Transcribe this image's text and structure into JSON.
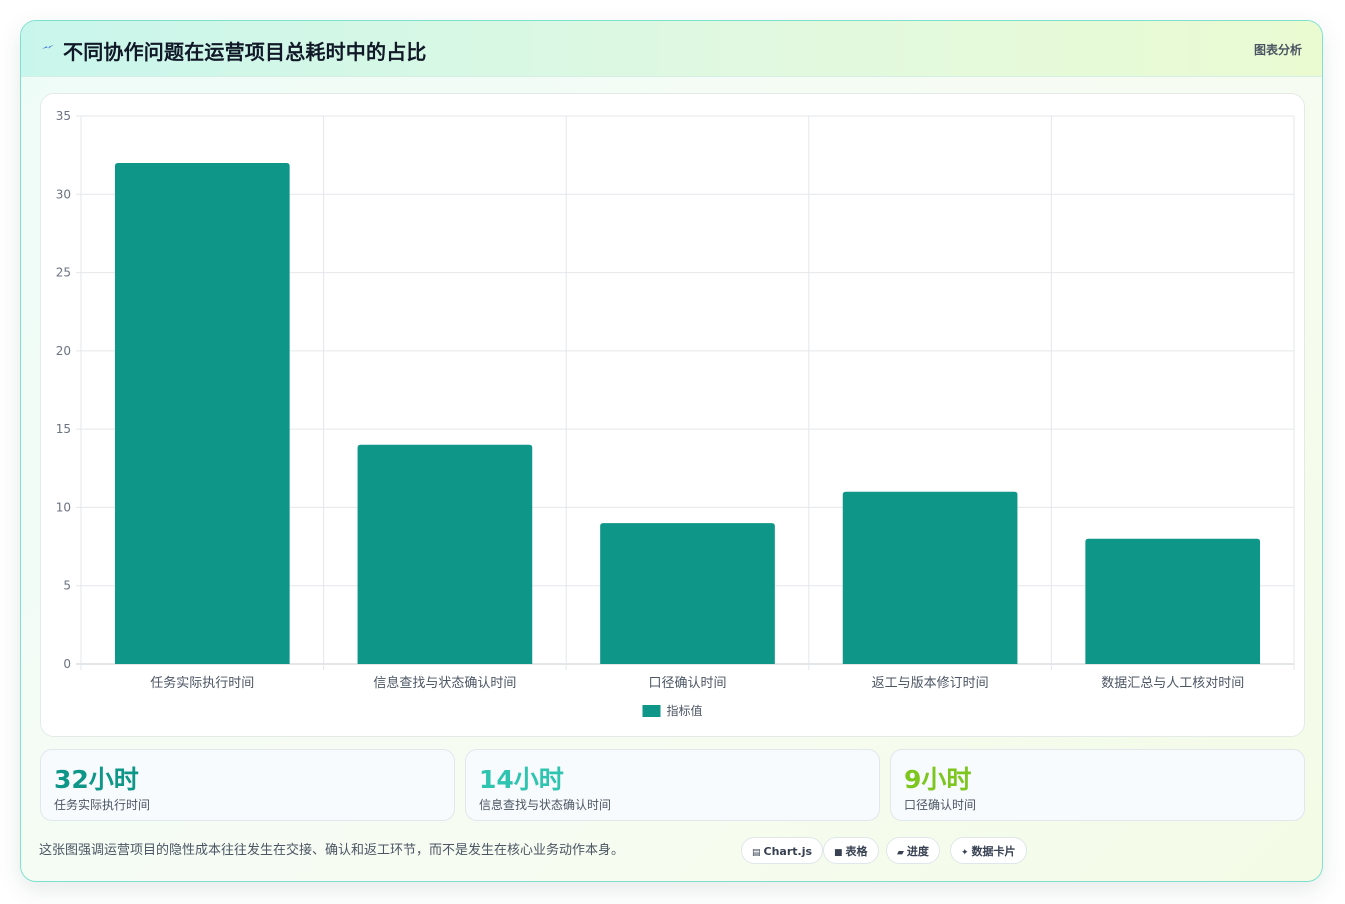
{
  "header": {
    "title": "不同协作问题在运营项目总耗时中的占比",
    "tag": "图表分析"
  },
  "chart_data": {
    "type": "bar",
    "categories": [
      "任务实际执行时间",
      "信息查找与状态确认时间",
      "口径确认时间",
      "返工与版本修订时间",
      "数据汇总与人工核对时间"
    ],
    "series": [
      {
        "name": "指标值",
        "values": [
          32,
          14,
          9,
          11,
          8
        ],
        "color": "#0e9688"
      }
    ],
    "ylim": [
      0,
      35
    ],
    "yticks": [
      0,
      5,
      10,
      15,
      20,
      25,
      30,
      35
    ],
    "grid": true,
    "legend": "bottom"
  },
  "stats": [
    {
      "value": "32小时",
      "label": "任务实际执行时间",
      "color": "#0e9688"
    },
    {
      "value": "14小时",
      "label": "信息查找与状态确认时间",
      "color": "#2ec4b0"
    },
    {
      "value": "9小时",
      "label": "口径确认时间",
      "color": "#7dc61f"
    }
  ],
  "footnote": "这张图强调运营项目的隐性成本往往发生在交接、确认和返工环节，而不是发生在核心业务动作本身。",
  "chips": [
    {
      "label": "Chart.js",
      "icon": "chart-icon"
    },
    {
      "label": "表格",
      "icon": "table-icon"
    },
    {
      "label": "进度",
      "icon": "progress-icon"
    },
    {
      "label": "数据卡片",
      "icon": "sparkle-icon"
    }
  ]
}
